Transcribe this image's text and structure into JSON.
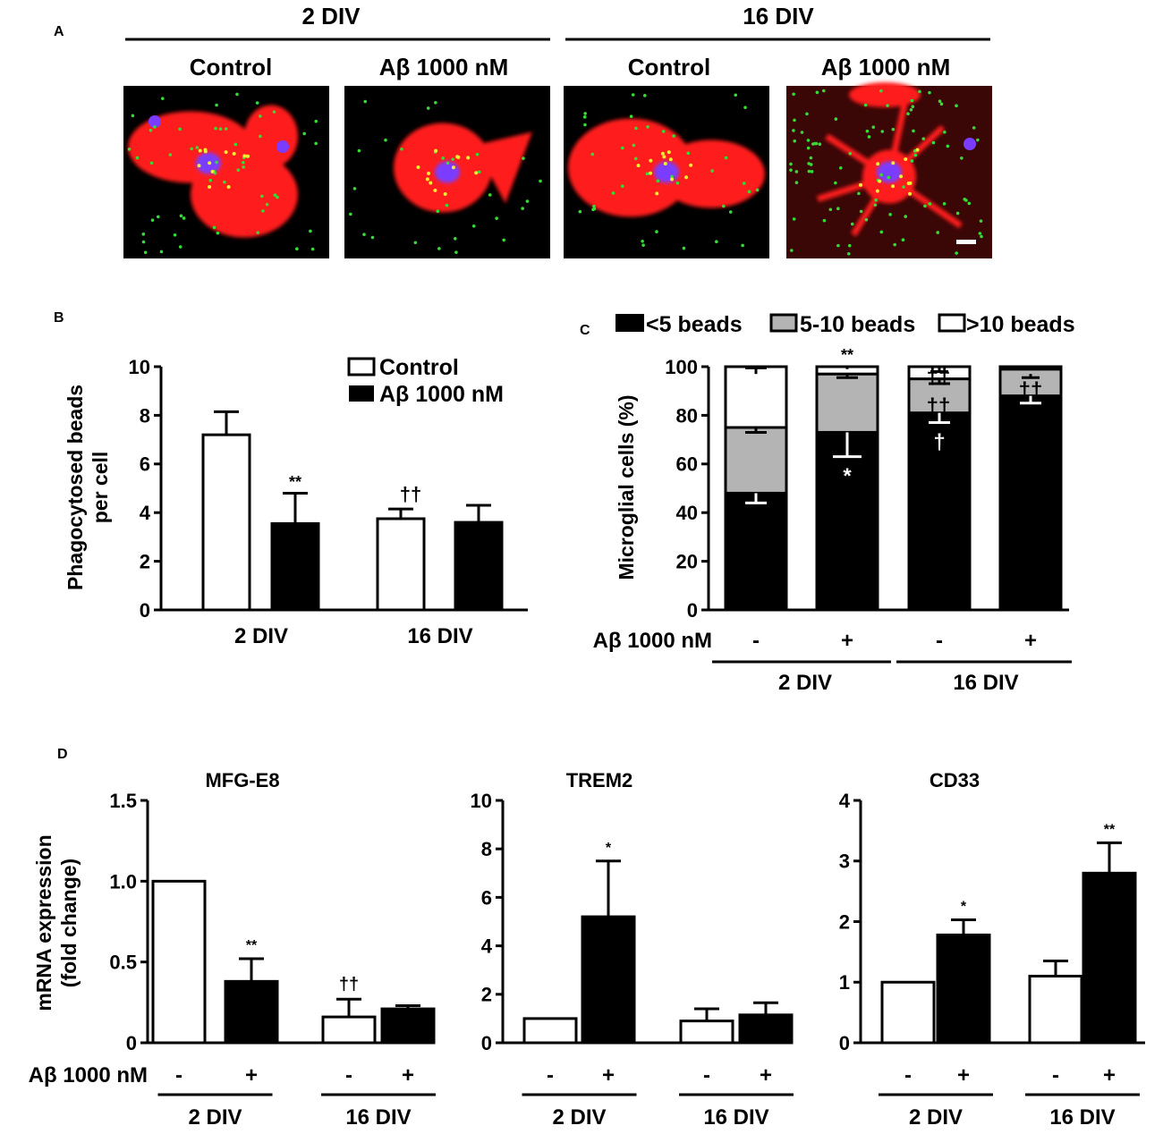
{
  "panels": {
    "A": {
      "letter": "A",
      "groups": [
        "2 DIV",
        "16 DIV"
      ],
      "columns": [
        "Control",
        "Aβ 1000 nM",
        "Control",
        "Aβ 1000 nM"
      ]
    },
    "B": {
      "letter": "B"
    },
    "C": {
      "letter": "C"
    },
    "D": {
      "letter": "D"
    }
  },
  "colors": {
    "treated": "#000000",
    "control": "#ffffff",
    "mid": "#b4b4b4",
    "cell": "#ff1a1a",
    "bead": "#33dd33",
    "nucleus": "#7a3cff"
  },
  "chart_data": [
    {
      "panel": "B",
      "type": "bar",
      "categories": [
        "2 DIV",
        "16 DIV"
      ],
      "ylabel": "Phagocytosed beads per cell",
      "ylim": [
        0,
        10
      ],
      "yticks": [
        0,
        2,
        4,
        6,
        8,
        10
      ],
      "legend": {
        "position": "top-right",
        "items": [
          "Control",
          "Aβ 1000 nM"
        ]
      },
      "series": [
        {
          "name": "Control",
          "values": [
            7.2,
            3.75
          ],
          "errors": [
            0.95,
            0.4
          ]
        },
        {
          "name": "Aβ 1000 nM",
          "values": [
            3.55,
            3.6
          ],
          "errors": [
            1.25,
            0.7
          ]
        }
      ],
      "annotations": [
        {
          "series": "Aβ 1000 nM",
          "category": "2 DIV",
          "text": "**"
        },
        {
          "series": "Control",
          "category": "16 DIV",
          "text": "††"
        }
      ]
    },
    {
      "panel": "C",
      "type": "bar",
      "stacked": true,
      "ylabel": "Microglial cells (%)",
      "ylim": [
        0,
        100
      ],
      "yticks": [
        0,
        20,
        40,
        60,
        80,
        100
      ],
      "treatment_label": "Aβ 1000 nM",
      "treatment": [
        "-",
        "+",
        "-",
        "+"
      ],
      "groups": [
        "2 DIV",
        "16 DIV"
      ],
      "legend": {
        "position": "top",
        "items": [
          "<5 beads",
          "5-10 beads",
          ">10 beads"
        ]
      },
      "series": [
        {
          "name": "<5 beads",
          "values": [
            48,
            73,
            81,
            88
          ],
          "errors": [
            4,
            10,
            4,
            3
          ]
        },
        {
          "name": "5-10 beads",
          "values": [
            27,
            24,
            14,
            11
          ],
          "errors": [
            1,
            1.5,
            1.5,
            2
          ]
        },
        {
          "name": ">10 beads",
          "values": [
            25,
            3,
            5,
            1
          ],
          "errors": [
            2,
            1,
            1,
            0
          ]
        }
      ],
      "annotations": [
        {
          "bar": 1,
          "text": "**"
        },
        {
          "bar": 1,
          "text": "*"
        },
        {
          "bar": 2,
          "text": "††"
        },
        {
          "bar": 2,
          "text": "††"
        },
        {
          "bar": 2,
          "text": "†"
        },
        {
          "bar": 3,
          "text": "††"
        }
      ]
    },
    {
      "panel": "D",
      "type": "bar",
      "title": "MFG-E8",
      "ylabel": "mRNA expression (fold change)",
      "ylim": [
        0,
        1.5
      ],
      "yticks": [
        "0",
        "0.5",
        "1.0",
        "1.5"
      ],
      "treatment_label": "Aβ 1000 nM",
      "treatment": [
        "-",
        "+",
        "-",
        "+"
      ],
      "groups": [
        "2 DIV",
        "16 DIV"
      ],
      "values": [
        1.0,
        0.38,
        0.16,
        0.21
      ],
      "errors": [
        0,
        0.14,
        0.11,
        0.02
      ],
      "annotations": [
        {
          "bar": 1,
          "text": "**"
        },
        {
          "bar": 2,
          "text": "††"
        }
      ]
    },
    {
      "panel": "D",
      "type": "bar",
      "title": "TREM2",
      "ylim": [
        0,
        10
      ],
      "yticks": [
        "0",
        "2",
        "4",
        "6",
        "8",
        "10"
      ],
      "treatment": [
        "-",
        "+",
        "-",
        "+"
      ],
      "groups": [
        "2 DIV",
        "16 DIV"
      ],
      "values": [
        1.0,
        5.2,
        0.9,
        1.15
      ],
      "errors": [
        0,
        2.3,
        0.5,
        0.5
      ],
      "annotations": [
        {
          "bar": 1,
          "text": "*"
        }
      ]
    },
    {
      "panel": "D",
      "type": "bar",
      "title": "CD33",
      "ylim": [
        0,
        4
      ],
      "yticks": [
        "0",
        "1",
        "2",
        "3",
        "4"
      ],
      "treatment": [
        "-",
        "+",
        "-",
        "+"
      ],
      "groups": [
        "2 DIV",
        "16 DIV"
      ],
      "values": [
        1.0,
        1.78,
        1.1,
        2.8
      ],
      "errors": [
        0,
        0.25,
        0.25,
        0.5
      ],
      "annotations": [
        {
          "bar": 1,
          "text": "*"
        },
        {
          "bar": 3,
          "text": "**"
        }
      ]
    }
  ]
}
